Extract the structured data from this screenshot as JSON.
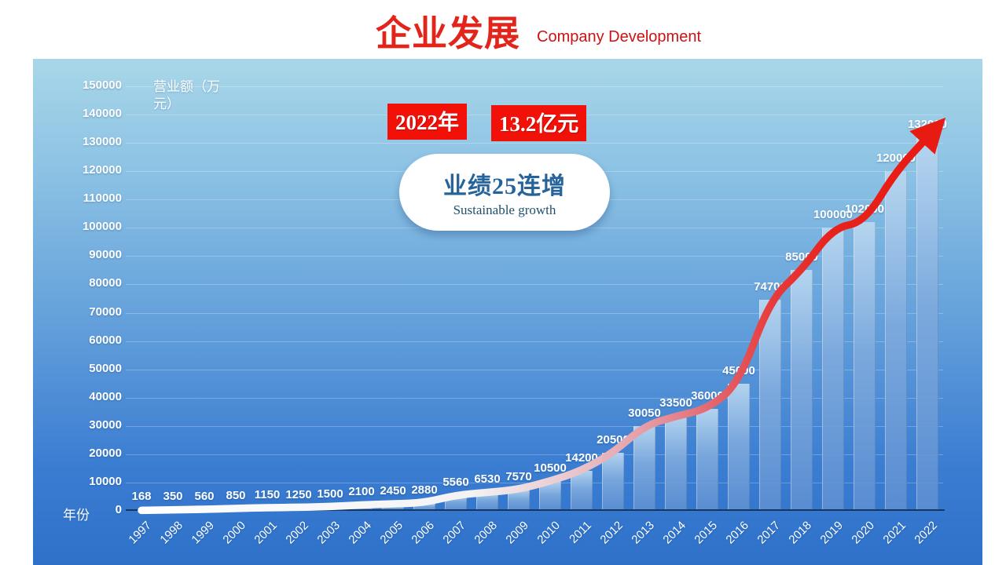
{
  "page": {
    "title": "企业发展",
    "subtitle": "Company Development"
  },
  "badges": {
    "year": "2022年",
    "amount": "13.2亿元"
  },
  "callout": {
    "title": "业绩25连增",
    "subtitle": "Sustainable growth"
  },
  "chart_data": {
    "type": "bar",
    "title": "",
    "xlabel": "年份",
    "ylabel": "营业额（万元）",
    "ylabel_lines": [
      "营业额（万",
      "元）"
    ],
    "categories": [
      "1997",
      "1998",
      "1999",
      "2000",
      "2001",
      "2002",
      "2003",
      "2004",
      "2005",
      "2006",
      "2007",
      "2008",
      "2009",
      "2010",
      "2011",
      "2012",
      "2013",
      "2014",
      "2015",
      "2016",
      "2017",
      "2018",
      "2019",
      "2020",
      "2021",
      "2022"
    ],
    "values": [
      168,
      350,
      560,
      850,
      1150,
      1250,
      1500,
      2100,
      2450,
      2880,
      5560,
      6530,
      7570,
      10500,
      14200,
      20500,
      30050,
      33500,
      36000,
      45000,
      74700,
      85000,
      100000,
      102000,
      120000,
      132000
    ],
    "ylim": [
      0,
      150000
    ],
    "ytick_step": 10000,
    "grid": true,
    "legend": "none",
    "annotation": "trend line from white to red ending in arrow at last bar"
  },
  "colors": {
    "title_red": "#e2241a",
    "subtitle_red": "#cc1212",
    "badge_red": "#f21109",
    "badge_text": "#ffffff",
    "panel_top": "#a9d7e9",
    "panel_bottom": "#2e71ca",
    "bar_fill": "#7fb0df",
    "axis_line": "#17375e",
    "chart_text": "#ffffff",
    "callout_title_blue": "#26639a",
    "callout_subtitle_blue": "#1c506e",
    "arrow_red": "#e81b12",
    "line_gradient": [
      [
        "0",
        "#ffffff"
      ],
      [
        "0.42",
        "#f4f2f3"
      ],
      [
        "0.55",
        "#e9c6cc"
      ],
      [
        "0.645",
        "#e59aa4"
      ],
      [
        "0.72",
        "#e46a72"
      ],
      [
        "0.80",
        "#e63d3e"
      ],
      [
        "0.88",
        "#e7221c"
      ],
      [
        "1",
        "#e81b12"
      ]
    ]
  }
}
